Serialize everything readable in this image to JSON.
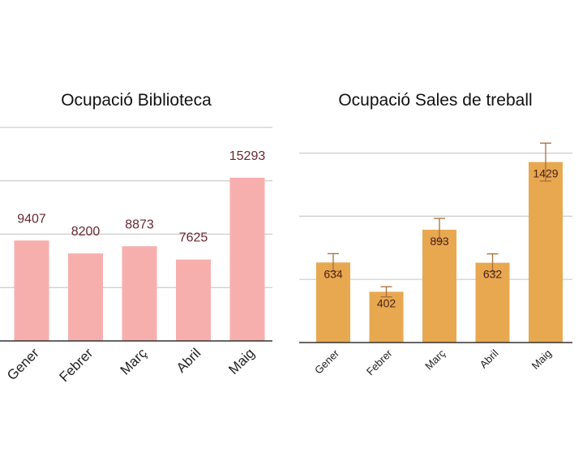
{
  "colors": {
    "background": "#ffffff",
    "grid": "#cccccc",
    "axis": "#333333",
    "bar_left": "#f7afae",
    "bar_right": "#e8a850",
    "error_bar": "#a86e3a",
    "label_left": "#6b2730",
    "label_right": "#4a2018"
  },
  "chart_data": [
    {
      "type": "bar",
      "title": "Ocupació Biblioteca",
      "categories": [
        "Gener",
        "Febrer",
        "Març",
        "Abril",
        "Maig"
      ],
      "values": [
        9407,
        8200,
        8873,
        7625,
        15293
      ],
      "xlabel": "",
      "ylabel": "",
      "ylim": [
        0,
        20000
      ],
      "grid": true,
      "data_labels": "above"
    },
    {
      "type": "bar",
      "title": "Ocupació Sales de treball",
      "categories": [
        "Gener",
        "Febrer",
        "Març",
        "Abril",
        "Maig"
      ],
      "values": [
        634,
        402,
        893,
        632,
        1429
      ],
      "error": [
        70,
        40,
        90,
        70,
        150
      ],
      "xlabel": "",
      "ylabel": "",
      "ylim": [
        0,
        1500
      ],
      "grid": true,
      "data_labels": "inside"
    }
  ]
}
